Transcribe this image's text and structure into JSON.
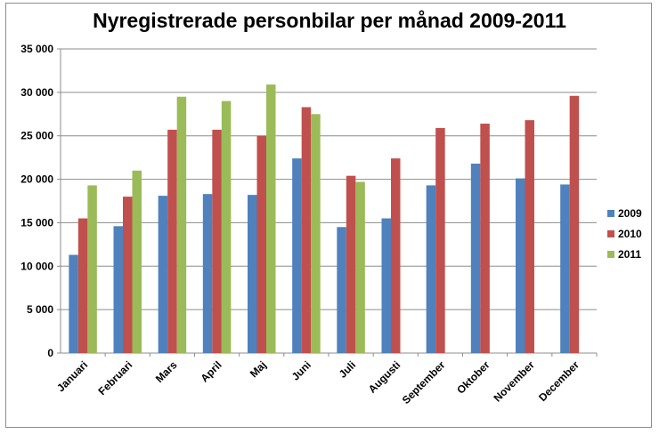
{
  "chart_data": {
    "type": "bar",
    "title": "Nyregistrerade personbilar per månad 2009-2011",
    "xlabel": "",
    "ylabel": "",
    "ylim": [
      0,
      35000
    ],
    "yticks": [
      "0",
      "5 000",
      "10 000",
      "15 000",
      "20 000",
      "25 000",
      "30 000",
      "35 000"
    ],
    "ytick_values": [
      0,
      5000,
      10000,
      15000,
      20000,
      25000,
      30000,
      35000
    ],
    "grid": true,
    "legend_position": "right",
    "categories": [
      "Januari",
      "Februari",
      "Mars",
      "April",
      "Maj",
      "Juni",
      "Juli",
      "Augusti",
      "September",
      "Oktober",
      "November",
      "December"
    ],
    "series": [
      {
        "name": "2009",
        "color": "#4f81bd",
        "values": [
          11300,
          14600,
          18100,
          18300,
          18200,
          22400,
          14500,
          15500,
          19300,
          21800,
          20100,
          19400
        ]
      },
      {
        "name": "2010",
        "color": "#c0504d",
        "values": [
          15500,
          18000,
          25700,
          25700,
          25000,
          28300,
          20400,
          22400,
          25900,
          26400,
          26800,
          29600
        ]
      },
      {
        "name": "2011",
        "color": "#9bbb59",
        "values": [
          19300,
          21000,
          29500,
          29000,
          30900,
          27500,
          19700,
          null,
          null,
          null,
          null,
          null
        ]
      }
    ]
  }
}
